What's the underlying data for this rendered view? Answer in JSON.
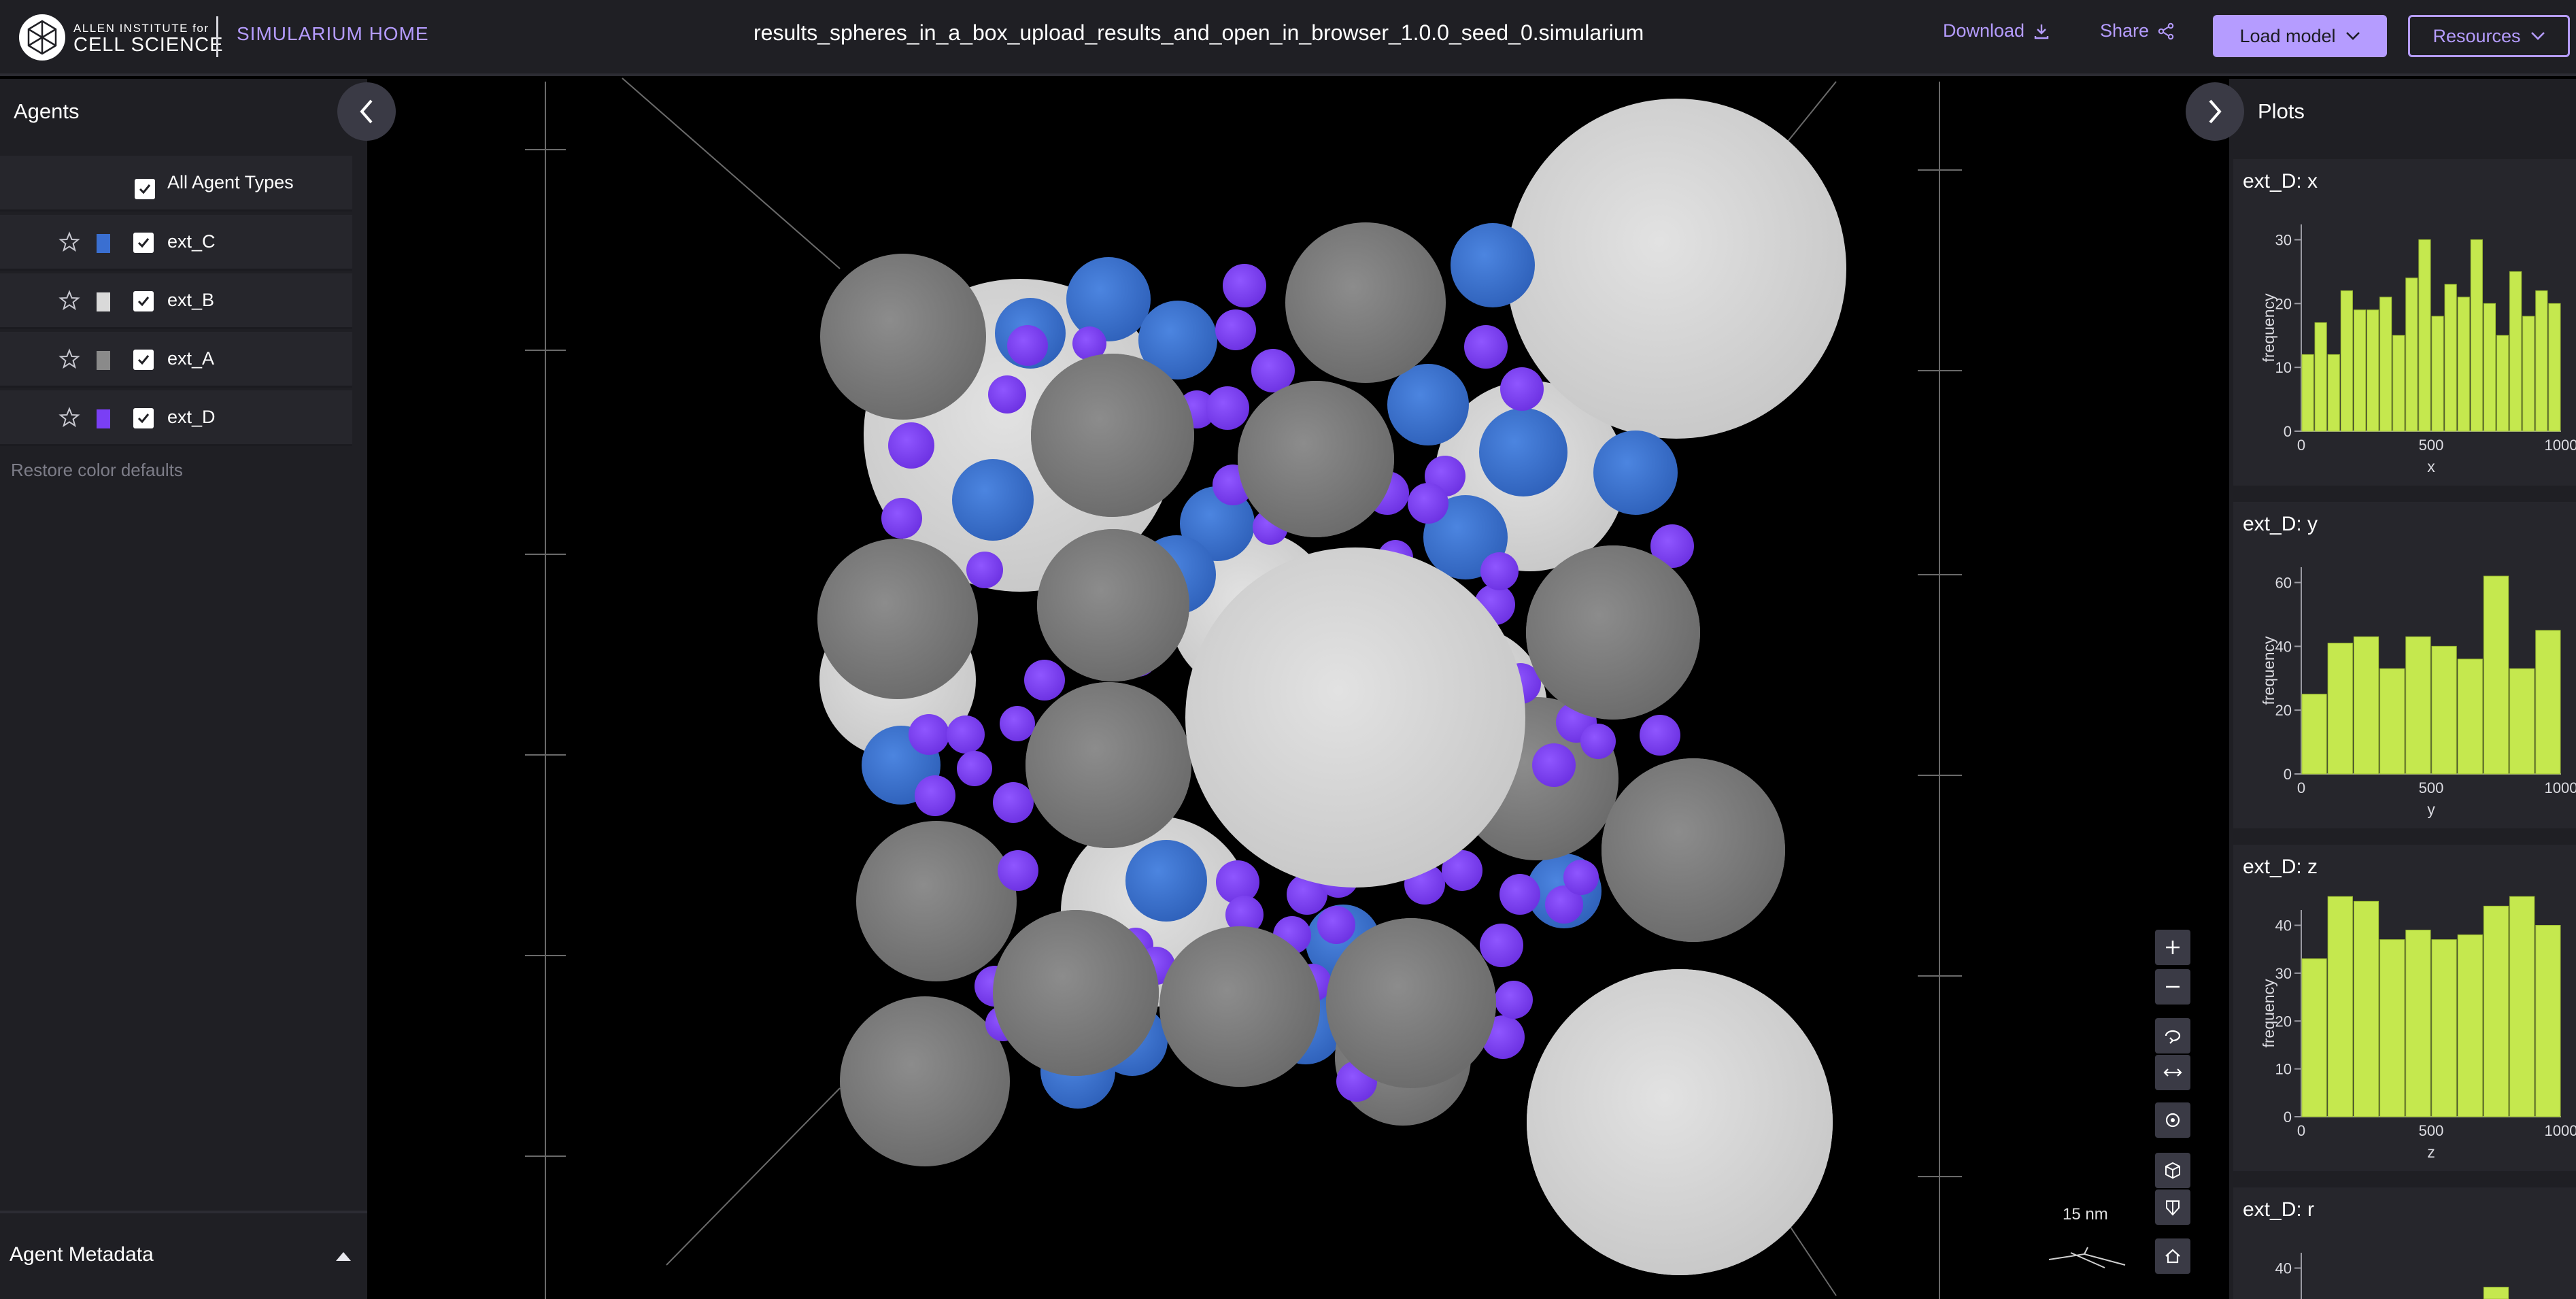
{
  "header": {
    "logo_small": "ALLEN INSTITUTE for",
    "logo_big": "CELL SCIENCE",
    "home_link": "SIMULARIUM HOME",
    "file_title": "results_spheres_in_a_box_upload_results_and_open_in_browser_1.0.0_seed_0.simularium",
    "download_label": "Download",
    "share_label": "Share",
    "load_model_label": "Load model",
    "resources_label": "Resources",
    "accent_color": "#b59cff"
  },
  "left_panel": {
    "title": "Agents",
    "all_types_label": "All Agent Types",
    "agents": [
      {
        "label": "ext_C",
        "color": "#3a6fd1"
      },
      {
        "label": "ext_B",
        "color": "#d9d9d9"
      },
      {
        "label": "ext_A",
        "color": "#8a8a8a"
      },
      {
        "label": "ext_D",
        "color": "#7a3ff5"
      }
    ],
    "restore_label": "Restore color defaults",
    "metadata_title": "Agent Metadata"
  },
  "right_panel": {
    "title": "Plots",
    "plots": [
      {
        "title": "ext_D: x",
        "xlabel": "x",
        "ylabel": "frequency"
      },
      {
        "title": "ext_D: y",
        "xlabel": "y",
        "ylabel": "frequency"
      },
      {
        "title": "ext_D: z",
        "xlabel": "z",
        "ylabel": "frequency"
      },
      {
        "title": "ext_D: r",
        "xlabel": "",
        "ylabel": ""
      }
    ]
  },
  "viewport": {
    "scale_label": "15 nm",
    "sphere_colors": {
      "ext_A": "#808080",
      "ext_B": "#d4d4d4",
      "ext_C": "#3a74d1",
      "ext_D": "#7b3ff7"
    }
  },
  "chart_data": [
    {
      "type": "bar",
      "title": "ext_D: x",
      "xlabel": "x",
      "ylabel": "frequency",
      "xlim": [
        0,
        1000
      ],
      "ylim": [
        0,
        30
      ],
      "xticks": [
        "0",
        "500",
        "1000"
      ],
      "yticks": [
        "0",
        "10",
        "20",
        "30"
      ],
      "color": "#c5e84e",
      "bins": 20,
      "values": [
        12,
        17,
        12,
        22,
        19,
        19,
        21,
        15,
        24,
        30,
        18,
        23,
        21,
        30,
        20,
        15,
        25,
        18,
        22,
        20
      ]
    },
    {
      "type": "bar",
      "title": "ext_D: y",
      "xlabel": "y",
      "ylabel": "frequency",
      "xlim": [
        0,
        1000
      ],
      "ylim": [
        0,
        60
      ],
      "xticks": [
        "0",
        "500",
        "1000"
      ],
      "yticks": [
        "0",
        "20",
        "40",
        "60"
      ],
      "color": "#c5e84e",
      "bins": 10,
      "values": [
        25,
        41,
        43,
        33,
        43,
        40,
        36,
        62,
        33,
        45
      ]
    },
    {
      "type": "bar",
      "title": "ext_D: z",
      "xlabel": "z",
      "ylabel": "frequency",
      "xlim": [
        0,
        1000
      ],
      "ylim": [
        0,
        40
      ],
      "xticks": [
        "0",
        "500",
        "1000"
      ],
      "yticks": [
        "0",
        "10",
        "20",
        "30",
        "40"
      ],
      "color": "#c5e84e",
      "bins": 10,
      "values": [
        33,
        46,
        45,
        37,
        39,
        37,
        38,
        44,
        46,
        40
      ]
    },
    {
      "type": "bar",
      "title": "ext_D: r",
      "xlabel": "",
      "ylabel": "",
      "xlim": [
        0,
        1000
      ],
      "ylim": [
        0,
        40
      ],
      "xticks": [],
      "yticks": [
        "40"
      ],
      "color": "#c5e84e",
      "bins": 10,
      "values": [
        0,
        0,
        0,
        0,
        0,
        0,
        0,
        36,
        0,
        0
      ]
    }
  ]
}
